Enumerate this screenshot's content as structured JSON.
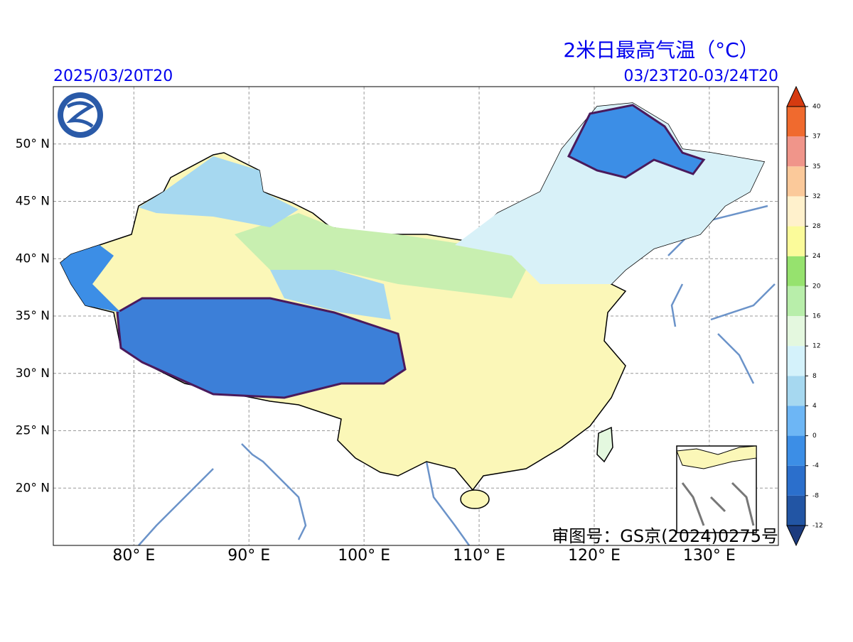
{
  "title": "2米日最高气温（°C）",
  "issue_time": "2025/03/20T20",
  "valid_period": "03/23T20-03/24T20",
  "review_number": "审图号：GS京(2024)0275号",
  "map": {
    "xlim": [
      73,
      136
    ],
    "ylim": [
      15,
      55
    ],
    "xticks": [
      {
        "value": 80,
        "label": "80° E"
      },
      {
        "value": 90,
        "label": "90° E"
      },
      {
        "value": 100,
        "label": "100° E"
      },
      {
        "value": 110,
        "label": "110° E"
      },
      {
        "value": 120,
        "label": "120° E"
      },
      {
        "value": 130,
        "label": "130° E"
      }
    ],
    "yticks": [
      {
        "value": 20,
        "label": "20° N"
      },
      {
        "value": 25,
        "label": "25° N"
      },
      {
        "value": 30,
        "label": "30° N"
      },
      {
        "value": 35,
        "label": "35° N"
      },
      {
        "value": 40,
        "label": "40° N"
      },
      {
        "value": 45,
        "label": "45° N"
      },
      {
        "value": 50,
        "label": "50° N"
      }
    ],
    "grid": true
  },
  "colorbar": {
    "ticks": [
      -12,
      -8,
      -4,
      0,
      4,
      8,
      12,
      16,
      20,
      24,
      28,
      32,
      35,
      37,
      40
    ],
    "colors": [
      "#1c3b7e",
      "#2255a4",
      "#2b6fcc",
      "#3c8ee6",
      "#6db6f5",
      "#a6d8f0",
      "#d4f2fb",
      "#e4f8df",
      "#b8eeaa",
      "#96e26e",
      "#fbfb9a",
      "#fff1cc",
      "#fbc99a",
      "#f0958a",
      "#f06a2e",
      "#d63a10"
    ]
  }
}
